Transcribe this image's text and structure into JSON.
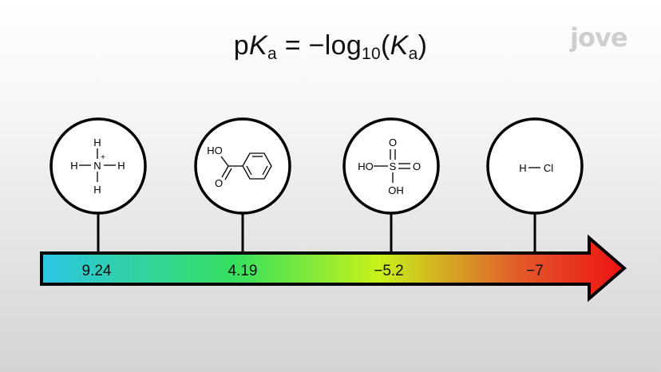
{
  "formula": {
    "p": "p",
    "K": "K",
    "a": "a",
    "eq": "=",
    "minus_log": "−log",
    "ten": "10",
    "open": "(",
    "K2": "K",
    "a2": "a",
    "close": ")"
  },
  "brand": {
    "logo_text": "jove"
  },
  "scale": {
    "values": [
      "9.24",
      "4.19",
      "−5.2",
      "−7"
    ],
    "arrow_colors": [
      "#2cc5e4",
      "#35e05f",
      "#c8f21a",
      "#e25a2a",
      "#ee1212"
    ]
  },
  "molecules": {
    "ammonium": {
      "H_top": "H",
      "H_left": "H",
      "N": "N",
      "charge": "+",
      "H_right": "H",
      "H_bottom": "H"
    },
    "benzoic": {
      "HO": "HO",
      "O": "O"
    },
    "sulfuric": {
      "O_top": "O",
      "HO_left": "HO",
      "S": "S",
      "O_right": "O",
      "OH_bottom": "OH"
    },
    "hcl": {
      "H": "H",
      "Cl": "Cl"
    }
  }
}
